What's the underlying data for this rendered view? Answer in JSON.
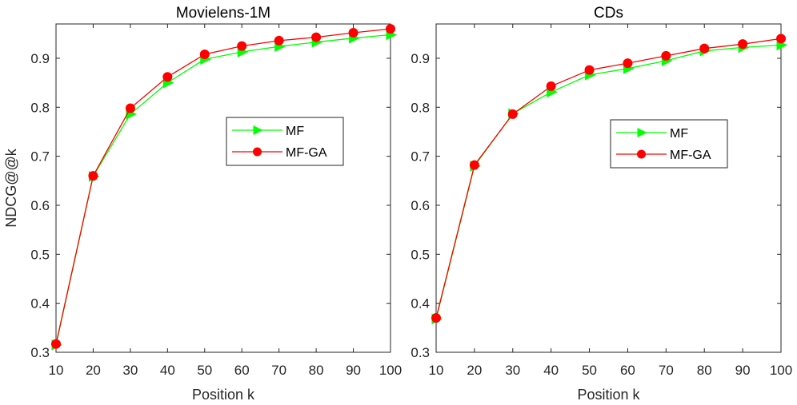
{
  "chart_data": [
    {
      "type": "line",
      "title": "Movielens-1M",
      "xlabel": "Position k",
      "ylabel": "NDCG@@k",
      "xlim": [
        10,
        100
      ],
      "ylim": [
        0.3,
        0.97
      ],
      "x": [
        10,
        20,
        30,
        40,
        50,
        60,
        70,
        80,
        90,
        100
      ],
      "xticks": [
        "10",
        "20",
        "30",
        "40",
        "50",
        "60",
        "70",
        "80",
        "90",
        "100"
      ],
      "yticks": [
        "0.3",
        "0.4",
        "0.5",
        "0.6",
        "0.7",
        "0.8",
        "0.9"
      ],
      "legend_position": "center-right",
      "series": [
        {
          "name": "MF",
          "marker": "triangle-right",
          "color": "#00ff00",
          "values": [
            0.315,
            0.659,
            0.786,
            0.85,
            0.898,
            0.913,
            0.924,
            0.933,
            0.941,
            0.948
          ]
        },
        {
          "name": "MF-GA",
          "marker": "circle",
          "color": "#ff0000",
          "values": [
            0.317,
            0.66,
            0.798,
            0.862,
            0.908,
            0.925,
            0.936,
            0.943,
            0.952,
            0.96
          ]
        }
      ]
    },
    {
      "type": "line",
      "title": "CDs",
      "xlabel": "Position k",
      "ylabel": "",
      "xlim": [
        10,
        100
      ],
      "ylim": [
        0.3,
        0.97
      ],
      "x": [
        10,
        20,
        30,
        40,
        50,
        60,
        70,
        80,
        90,
        100
      ],
      "xticks": [
        "10",
        "20",
        "30",
        "40",
        "50",
        "60",
        "70",
        "80",
        "90",
        "100"
      ],
      "yticks": [
        "0.3",
        "0.4",
        "0.5",
        "0.6",
        "0.7",
        "0.8",
        "0.9"
      ],
      "legend_position": "center-right",
      "series": [
        {
          "name": "MF",
          "marker": "triangle-right",
          "color": "#00ff00",
          "values": [
            0.368,
            0.68,
            0.787,
            0.831,
            0.866,
            0.879,
            0.895,
            0.915,
            0.922,
            0.927
          ]
        },
        {
          "name": "MF-GA",
          "marker": "circle",
          "color": "#ff0000",
          "values": [
            0.37,
            0.682,
            0.786,
            0.843,
            0.876,
            0.89,
            0.905,
            0.92,
            0.929,
            0.94
          ]
        }
      ]
    }
  ]
}
